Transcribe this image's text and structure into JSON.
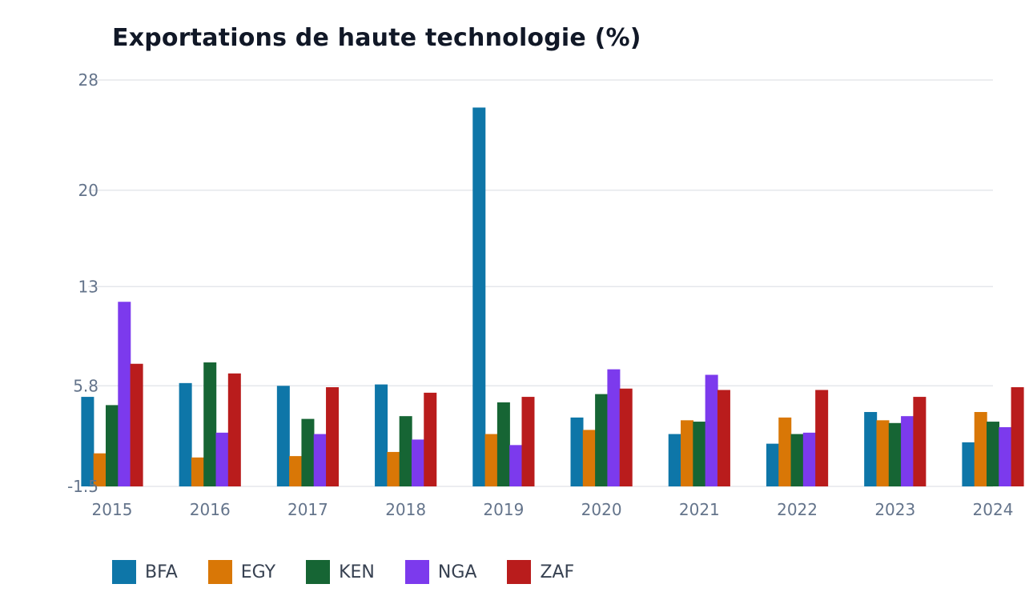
{
  "chart_data": {
    "type": "bar",
    "title": "Exportations de haute technologie (%)",
    "xlabel": "",
    "ylabel": "",
    "categories": [
      "2015",
      "2016",
      "2017",
      "2018",
      "2019",
      "2020",
      "2021",
      "2022",
      "2023",
      "2024"
    ],
    "ylim": [
      -1.5,
      28
    ],
    "yticks": [
      -1.5,
      5.8,
      13,
      20,
      28
    ],
    "ytick_labels": [
      "-1.5",
      "5.8",
      "13",
      "20",
      "28"
    ],
    "grid": true,
    "legend_position": "bottom-left",
    "series": [
      {
        "name": "BFA",
        "color": "#0e76a8",
        "values": [
          5.0,
          6.0,
          5.8,
          5.9,
          26.0,
          3.5,
          2.3,
          1.6,
          3.9,
          1.7
        ]
      },
      {
        "name": "EGY",
        "color": "#d97706",
        "values": [
          0.9,
          0.6,
          0.7,
          1.0,
          2.3,
          2.6,
          3.3,
          3.5,
          3.3,
          3.9
        ]
      },
      {
        "name": "KEN",
        "color": "#166534",
        "values": [
          4.4,
          7.5,
          3.4,
          3.6,
          4.6,
          5.2,
          3.2,
          2.3,
          3.1,
          3.2
        ]
      },
      {
        "name": "NGA",
        "color": "#7c3aed",
        "values": [
          11.9,
          2.4,
          2.3,
          1.9,
          1.5,
          7.0,
          6.6,
          2.4,
          3.6,
          2.8
        ]
      },
      {
        "name": "ZAF",
        "color": "#b91c1c",
        "values": [
          7.4,
          6.7,
          5.7,
          5.3,
          5.0,
          5.6,
          5.5,
          5.5,
          5.0,
          5.7
        ]
      }
    ]
  }
}
